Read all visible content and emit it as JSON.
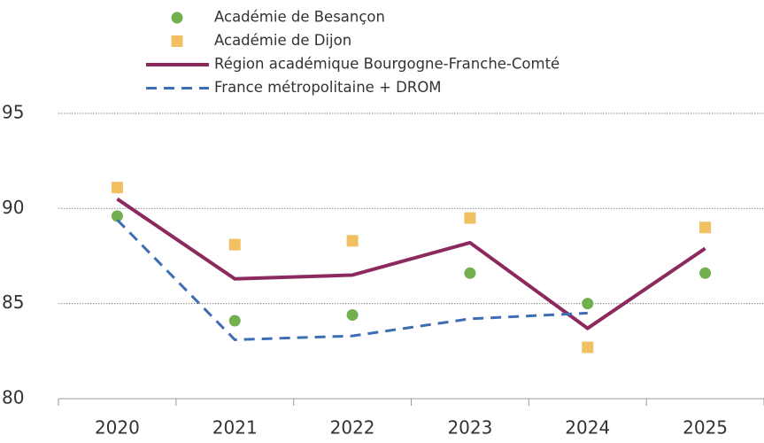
{
  "chart_data": {
    "type": "line",
    "categories": [
      "2020",
      "2021",
      "2022",
      "2023",
      "2024",
      "2025"
    ],
    "series": [
      {
        "name": "Académie de Besançon",
        "color": "#72b04e",
        "marker": "circle",
        "values": [
          89.6,
          84.1,
          84.4,
          86.6,
          85.0,
          86.6
        ]
      },
      {
        "name": "Académie de Dijon",
        "color": "#f0c062",
        "marker": "square",
        "values": [
          91.1,
          88.1,
          88.3,
          89.5,
          82.7,
          89.0
        ]
      },
      {
        "name": "Région académique Bourgogne-Franche-Comté",
        "color": "#8c2a5e",
        "line": "solid",
        "values": [
          90.5,
          86.3,
          86.5,
          88.2,
          83.7,
          87.9
        ]
      },
      {
        "name": "France métropolitaine + DROM",
        "color": "#3d6db3",
        "line": "dashed",
        "values": [
          89.4,
          83.1,
          83.3,
          84.2,
          84.5,
          null
        ]
      }
    ],
    "ylim": [
      80,
      97
    ],
    "yticks": [
      80,
      85,
      90,
      95
    ],
    "grid": true
  }
}
